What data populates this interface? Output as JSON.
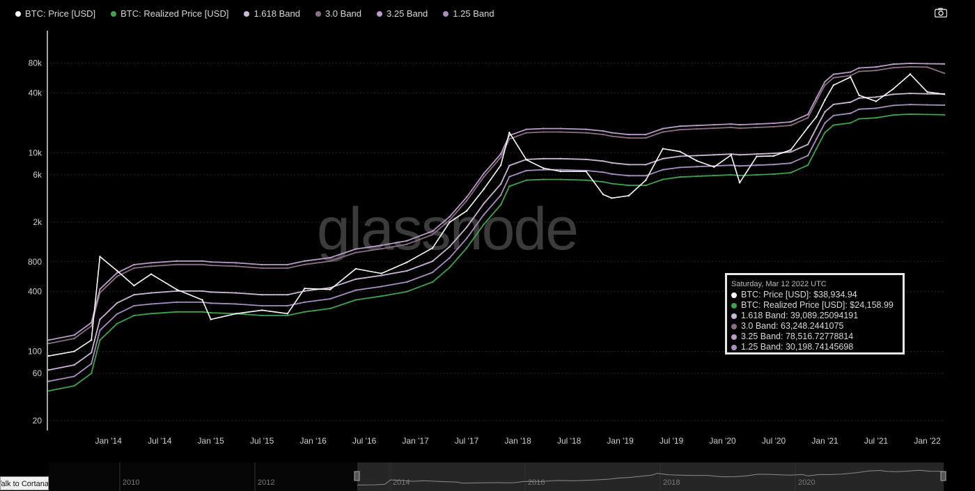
{
  "legend": [
    {
      "label": "BTC: Price [USD]",
      "color": "#ffffff"
    },
    {
      "label": "BTC: Realized Price [USD]",
      "color": "#3fa34d"
    },
    {
      "label": "1.618 Band",
      "color": "#cdb8d6"
    },
    {
      "label": "3.0 Band",
      "color": "#8a6e84"
    },
    {
      "label": "3.25 Band",
      "color": "#b89dc7"
    },
    {
      "label": "1.25 Band",
      "color": "#a98fbf"
    }
  ],
  "toolbar": {
    "camera_icon": "camera-icon"
  },
  "watermark": "glassnode",
  "tooltip": {
    "date": "Saturday, Mar 12 2022 UTC",
    "rows": [
      {
        "label": "BTC: Price [USD]: $38,934.94",
        "color": "#ffffff"
      },
      {
        "label": "BTC: Realized Price [USD]: $24,158.99",
        "color": "#3fa34d"
      },
      {
        "label": "1.618 Band: 39,089.25094191",
        "color": "#cdb8d6"
      },
      {
        "label": "3.0 Band: 63,248.2441075",
        "color": "#8a6e84"
      },
      {
        "label": "3.25 Band: 78,516.72778814",
        "color": "#b89dc7"
      },
      {
        "label": "1.25 Band: 30,198.74145698",
        "color": "#a98fbf"
      }
    ]
  },
  "navigator": {
    "years": [
      "2010",
      "2012",
      "2014",
      "2016",
      "2018",
      "2020"
    ]
  },
  "taskbar": {
    "cortana_label": "Talk to Cortana"
  },
  "chart_data": {
    "type": "line",
    "y_scale": "log",
    "ylim": [
      16,
      170000
    ],
    "y_ticks": [
      20,
      60,
      100,
      400,
      800,
      2000,
      6000,
      10000,
      40000,
      80000
    ],
    "y_tick_labels": [
      "20",
      "60",
      "100",
      "400",
      "800",
      "2k",
      "6k",
      "10k",
      "40k",
      "80k"
    ],
    "x_ticks": [
      "Jan '14",
      "Jul '14",
      "Jan '15",
      "Jul '15",
      "Jan '16",
      "Jul '16",
      "Jan '17",
      "Jul '17",
      "Jan '18",
      "Jul '18",
      "Jan '19",
      "Jul '19",
      "Jan '20",
      "Jul '20",
      "Jan '21",
      "Jul '21",
      "Jan '22"
    ],
    "x_range": [
      "2013-06",
      "2022-03"
    ],
    "grid": true,
    "legend_position": "top-left",
    "x": [
      "2013-06",
      "2013-09",
      "2013-11",
      "2013-12",
      "2014-02",
      "2014-04",
      "2014-06",
      "2014-09",
      "2014-12",
      "2015-01",
      "2015-04",
      "2015-07",
      "2015-10",
      "2015-12",
      "2016-03",
      "2016-06",
      "2016-09",
      "2016-12",
      "2017-03",
      "2017-05",
      "2017-07",
      "2017-09",
      "2017-11",
      "2017-12",
      "2018-02",
      "2018-04",
      "2018-06",
      "2018-09",
      "2018-11",
      "2018-12",
      "2019-02",
      "2019-04",
      "2019-06",
      "2019-08",
      "2019-10",
      "2019-12",
      "2020-02",
      "2020-03",
      "2020-05",
      "2020-07",
      "2020-09",
      "2020-11",
      "2020-12",
      "2021-01",
      "2021-02",
      "2021-04",
      "2021-05",
      "2021-07",
      "2021-09",
      "2021-11",
      "2022-01",
      "2022-03"
    ],
    "series": [
      {
        "name": "BTC: Price [USD]",
        "color": "#ffffff",
        "values": [
          90,
          100,
          130,
          900,
          650,
          460,
          600,
          420,
          330,
          210,
          240,
          260,
          240,
          430,
          420,
          680,
          610,
          790,
          1100,
          2000,
          2600,
          4300,
          7500,
          16000,
          8500,
          7000,
          6500,
          6500,
          3800,
          3500,
          3700,
          5300,
          11000,
          10300,
          8300,
          7200,
          9500,
          5000,
          9200,
          9300,
          10700,
          18000,
          23000,
          34000,
          48000,
          58000,
          38000,
          33000,
          44000,
          62000,
          41000,
          38935
        ]
      },
      {
        "name": "BTC: Realized Price [USD]",
        "color": "#3fa34d",
        "values": [
          40,
          45,
          60,
          130,
          190,
          230,
          240,
          250,
          250,
          245,
          240,
          230,
          230,
          250,
          270,
          330,
          360,
          400,
          500,
          700,
          1100,
          1900,
          3000,
          4600,
          5300,
          5400,
          5400,
          5300,
          5100,
          4900,
          4700,
          4700,
          5400,
          5700,
          5800,
          5900,
          6000,
          5900,
          6000,
          6100,
          6300,
          7500,
          11000,
          16000,
          19000,
          20000,
          22000,
          22500,
          24000,
          24500,
          24300,
          24159
        ]
      },
      {
        "name": "1.618 Band",
        "color": "#cdb8d6",
        "values": [
          65,
          73,
          97,
          210,
          307,
          372,
          388,
          405,
          405,
          396,
          388,
          372,
          372,
          405,
          437,
          534,
          582,
          647,
          809,
          1133,
          1780,
          3074,
          4854,
          7443,
          8575,
          8737,
          8737,
          8575,
          8252,
          7928,
          7605,
          7605,
          8737,
          9223,
          9384,
          9546,
          9708,
          9546,
          9708,
          9870,
          10193,
          12135,
          17798,
          25888,
          30742,
          32360,
          35596,
          36405,
          38832,
          39641,
          39316,
          39089
        ]
      },
      {
        "name": "3.0 Band",
        "color": "#8a6e84",
        "values": [
          120,
          135,
          180,
          390,
          570,
          690,
          720,
          750,
          750,
          735,
          720,
          690,
          690,
          750,
          810,
          990,
          1080,
          1200,
          1500,
          2100,
          3300,
          5700,
          9000,
          13800,
          15900,
          16200,
          16200,
          15900,
          15300,
          14700,
          14100,
          14100,
          16200,
          17100,
          17400,
          17700,
          18000,
          17700,
          18000,
          18300,
          18900,
          22500,
          33000,
          48000,
          57000,
          60000,
          66000,
          67500,
          72000,
          73500,
          72900,
          63248
        ]
      },
      {
        "name": "3.25 Band",
        "color": "#b89dc7",
        "values": [
          130,
          146,
          195,
          423,
          618,
          748,
          780,
          813,
          813,
          796,
          780,
          748,
          748,
          813,
          878,
          1073,
          1170,
          1300,
          1625,
          2275,
          3575,
          6175,
          9750,
          14950,
          17225,
          17550,
          17550,
          17225,
          16575,
          15925,
          15275,
          15275,
          17550,
          18525,
          18850,
          19175,
          19500,
          19175,
          19500,
          19825,
          20475,
          24375,
          35750,
          52000,
          61750,
          65000,
          71500,
          73125,
          78000,
          79625,
          78975,
          78517
        ]
      },
      {
        "name": "1.25 Band",
        "color": "#a98fbf",
        "values": [
          50,
          56,
          75,
          163,
          238,
          288,
          300,
          313,
          313,
          306,
          300,
          288,
          288,
          313,
          338,
          413,
          450,
          500,
          625,
          875,
          1375,
          2375,
          3750,
          5750,
          6625,
          6750,
          6750,
          6625,
          6375,
          6125,
          5875,
          5875,
          6750,
          7125,
          7250,
          7375,
          7500,
          7375,
          7500,
          7625,
          7875,
          9375,
          13750,
          20000,
          23750,
          25000,
          27500,
          28125,
          30000,
          30625,
          30375,
          30199
        ]
      }
    ]
  }
}
